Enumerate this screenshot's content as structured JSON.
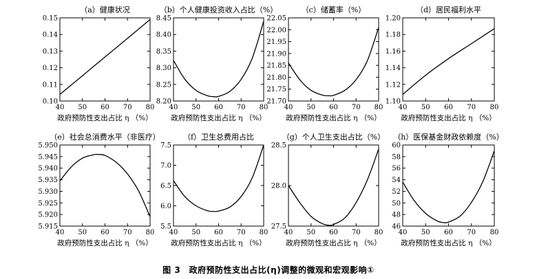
{
  "figure": {
    "caption": "图 3　政府预防性支出占比(η)调整的微观和宏观影响①"
  },
  "chart_data": [
    {
      "type": "line",
      "title": "（a）健康状况",
      "xlabel": "政府预防性支出占比 η （%）",
      "xlim": [
        40,
        80
      ],
      "ylim": [
        0.1,
        0.15
      ],
      "xticks": [
        "40",
        "50",
        "60",
        "70",
        "80"
      ],
      "yticks": [
        "0.10",
        "0.11",
        "0.12",
        "0.13",
        "0.14",
        "0.15"
      ],
      "x": [
        40,
        50,
        60,
        70,
        80
      ],
      "y": [
        0.104,
        0.1152,
        0.1265,
        0.1377,
        0.149
      ]
    },
    {
      "type": "line",
      "title": "（b）个人健康投资收入占比（%）",
      "xlabel": "政府预防性支出占比 η （%）",
      "xlim": [
        40,
        80
      ],
      "ylim": [
        8.2,
        8.45
      ],
      "xticks": [
        "40",
        "50",
        "60",
        "70",
        "80"
      ],
      "yticks": [
        "8.20",
        "8.25",
        "8.30",
        "8.35",
        "8.40",
        "8.45"
      ],
      "x": [
        40,
        45,
        50,
        55,
        58,
        60,
        65,
        70,
        75,
        80
      ],
      "y": [
        8.322,
        8.266,
        8.232,
        8.216,
        8.213,
        8.214,
        8.229,
        8.265,
        8.33,
        8.44
      ]
    },
    {
      "type": "line",
      "title": "（c）储蓄率（%）",
      "xlabel": "政府预防性支出占比 η （%）",
      "xlim": [
        40,
        80
      ],
      "ylim": [
        21.7,
        22.05
      ],
      "xticks": [
        "40",
        "50",
        "60",
        "70",
        "80"
      ],
      "yticks": [
        "21.70",
        "21.75",
        "21.80",
        "21.85",
        "21.90",
        "21.95",
        "22.00",
        "22.05"
      ],
      "x": [
        40,
        45,
        50,
        55,
        58,
        60,
        65,
        70,
        75,
        80
      ],
      "y": [
        21.86,
        21.79,
        21.745,
        21.725,
        21.722,
        21.724,
        21.745,
        21.79,
        21.87,
        22.01
      ]
    },
    {
      "type": "line",
      "title": "（d）居民福利水平",
      "xlabel": "政府预防性支出占比 η （%）",
      "xlim": [
        40,
        80
      ],
      "ylim": [
        1.1,
        1.2
      ],
      "xticks": [
        "40",
        "50",
        "60",
        "70",
        "80"
      ],
      "yticks": [
        "1.10",
        "1.12",
        "1.14",
        "1.16",
        "1.18",
        "1.20"
      ],
      "x": [
        40,
        50,
        60,
        70,
        80
      ],
      "y": [
        1.108,
        1.131,
        1.151,
        1.169,
        1.187
      ]
    },
    {
      "type": "line",
      "title": "（e）社会总消费水平（非医疗）",
      "xlabel": "政府预防性支出占比 η （%）",
      "xlim": [
        40,
        80
      ],
      "ylim": [
        5.915,
        5.95
      ],
      "xticks": [
        "40",
        "50",
        "60",
        "70",
        "80"
      ],
      "yticks": [
        "5.915",
        "5.920",
        "5.925",
        "5.930",
        "5.935",
        "5.940",
        "5.945",
        "5.950"
      ],
      "x": [
        40,
        45,
        50,
        55,
        57,
        60,
        65,
        70,
        75,
        80
      ],
      "y": [
        5.9345,
        5.9405,
        5.9443,
        5.9458,
        5.9459,
        5.9455,
        5.9425,
        5.9375,
        5.93,
        5.919
      ]
    },
    {
      "type": "line",
      "title": "（f）卫生总费用占比",
      "xlabel": "政府预防性支出占比 η （%）",
      "xlim": [
        40,
        80
      ],
      "ylim": [
        5.5,
        7.5
      ],
      "xticks": [
        "40",
        "50",
        "60",
        "70",
        "80"
      ],
      "yticks": [
        "5.5",
        "6.0",
        "6.5",
        "7.0",
        "7.5"
      ],
      "x": [
        40,
        45,
        50,
        55,
        58,
        60,
        65,
        70,
        75,
        80
      ],
      "y": [
        6.62,
        6.23,
        6.0,
        5.88,
        5.86,
        5.87,
        5.97,
        6.23,
        6.7,
        7.5
      ]
    },
    {
      "type": "line",
      "title": "（g）个人卫生支出占比（%）",
      "xlabel": "政府预防性支出占比 η （%）",
      "xlim": [
        40,
        80
      ],
      "ylim": [
        27.5,
        28.5
      ],
      "xticks": [
        "40",
        "50",
        "60",
        "70",
        "80"
      ],
      "yticks": [
        "27.5",
        "28.0",
        "28.5"
      ],
      "x": [
        40,
        45,
        50,
        55,
        58,
        60,
        65,
        70,
        75,
        80
      ],
      "y": [
        28.0,
        27.79,
        27.62,
        27.53,
        27.51,
        27.52,
        27.6,
        27.79,
        28.07,
        28.45
      ]
    },
    {
      "type": "line",
      "title": "（h）医保基金财政依赖度（%）",
      "xlabel": "政府预防性支出占比 η （%）",
      "xlim": [
        40,
        80
      ],
      "ylim": [
        46,
        60
      ],
      "xticks": [
        "40",
        "50",
        "60",
        "70",
        "80"
      ],
      "yticks": [
        "46",
        "48",
        "50",
        "52",
        "54",
        "56",
        "58",
        "60"
      ],
      "x": [
        40,
        45,
        50,
        55,
        58,
        60,
        65,
        70,
        75,
        80
      ],
      "y": [
        53.6,
        50.4,
        48.2,
        46.9,
        46.6,
        46.7,
        47.7,
        50.1,
        53.7,
        59.0
      ]
    }
  ]
}
